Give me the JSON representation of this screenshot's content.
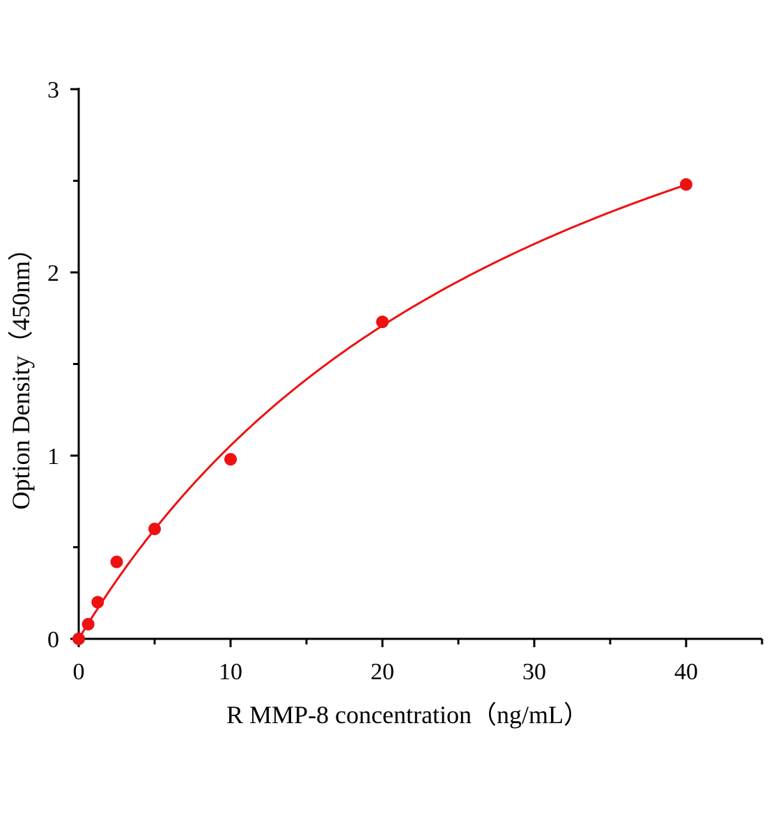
{
  "chart_data": {
    "type": "scatter",
    "title": "",
    "xlabel": "R MMP-8  concentration（ng/mL）",
    "ylabel": "Option Density（450nm）",
    "xlim": [
      0,
      45
    ],
    "ylim": [
      0,
      3
    ],
    "x_ticks": [
      0,
      10,
      20,
      30,
      40
    ],
    "x_tick_labels": [
      "0",
      "10",
      "20",
      "30",
      "40"
    ],
    "x_minor_ticks": [
      5,
      15,
      25,
      35,
      45
    ],
    "y_ticks": [
      0,
      1,
      2,
      3
    ],
    "y_tick_labels": [
      "0",
      "1",
      "2",
      "3"
    ],
    "y_minor_ticks": [
      0.5,
      1.5,
      2.5
    ],
    "grid": false,
    "legend": "none",
    "series": [
      {
        "x": [
          0,
          0.625,
          1.25,
          2.5,
          5,
          10,
          20,
          40
        ],
        "y": [
          0.0,
          0.08,
          0.2,
          0.42,
          0.6,
          0.98,
          1.73,
          2.48
        ],
        "marker": "circle",
        "fit_curve": true
      }
    ],
    "color": "#ee1111"
  }
}
